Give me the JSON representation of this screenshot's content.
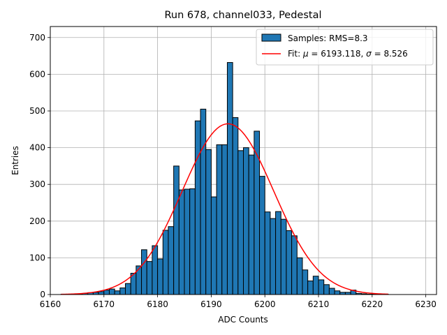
{
  "chart_data": {
    "type": "bar",
    "title": "Run 678, channel033, Pedestal",
    "xlabel": "ADC Counts",
    "ylabel": "Entries",
    "xlim": [
      6160,
      6232
    ],
    "ylim": [
      0,
      730
    ],
    "xticks": [
      6160,
      6170,
      6180,
      6190,
      6200,
      6210,
      6220,
      6230
    ],
    "yticks": [
      0,
      100,
      200,
      300,
      400,
      500,
      600,
      700
    ],
    "grid": true,
    "legend_placement": "upper right",
    "bin_width": 1,
    "bins": {
      "x_start": [
        6162,
        6163,
        6164,
        6165,
        6166,
        6167,
        6168,
        6169,
        6170,
        6171,
        6172,
        6173,
        6174,
        6175,
        6176,
        6177,
        6178,
        6179,
        6180,
        6181,
        6182,
        6183,
        6184,
        6185,
        6186,
        6187,
        6188,
        6189,
        6190,
        6191,
        6192,
        6193,
        6194,
        6195,
        6196,
        6197,
        6198,
        6199,
        6200,
        6201,
        6202,
        6203,
        6204,
        6205,
        6206,
        6207,
        6208,
        6209,
        6210,
        6211,
        6212,
        6213,
        6214,
        6215,
        6216,
        6217,
        6218,
        6219,
        6220,
        6221,
        6222
      ],
      "counts": [
        1,
        0,
        1,
        2,
        3,
        5,
        6,
        8,
        12,
        15,
        10,
        18,
        30,
        58,
        78,
        122,
        90,
        133,
        97,
        175,
        185,
        350,
        285,
        287,
        288,
        473,
        505,
        395,
        266,
        408,
        408,
        632,
        482,
        392,
        400,
        380,
        445,
        322,
        225,
        207,
        226,
        205,
        174,
        160,
        100,
        67,
        37,
        50,
        40,
        27,
        17,
        10,
        6,
        6,
        12,
        3,
        2,
        1,
        1,
        0,
        1
      ]
    },
    "fit": {
      "mu": 6193.118,
      "sigma": 8.526,
      "amplitude": 465,
      "x_range": [
        6162,
        6223
      ]
    },
    "series": [
      {
        "name": "Samples: RMS=8.3",
        "color": "#1f77b4",
        "kind": "histogram"
      },
      {
        "name": "Fit",
        "color": "#ff0000",
        "kind": "line"
      }
    ],
    "legend": {
      "samples_label": "Samples: RMS=8.3",
      "fit_prefix": "Fit: ",
      "mu_symbol": "μ",
      "fit_mid": " = 6193.118, ",
      "sigma_symbol": "σ",
      "fit_suffix": " = 8.526"
    }
  }
}
